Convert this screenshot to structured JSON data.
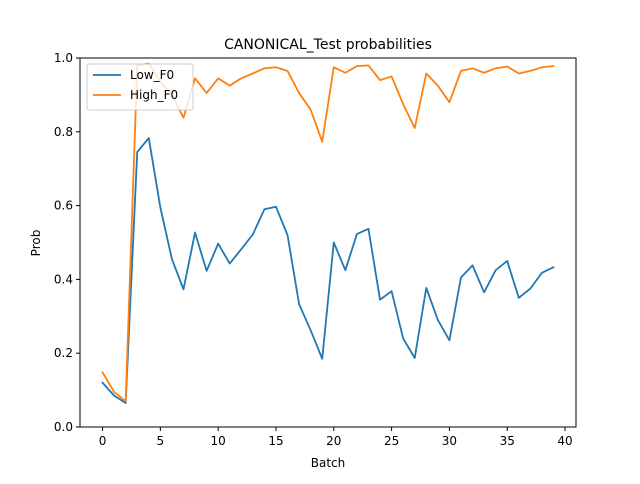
{
  "chart_data": {
    "type": "line",
    "title": "CANONICAL_Test probabilities",
    "xlabel": "Batch",
    "ylabel": "Prob",
    "xlim": [
      -1.95,
      40.95
    ],
    "ylim": [
      0.0,
      1.0
    ],
    "xticks": [
      0,
      5,
      10,
      15,
      20,
      25,
      30,
      35,
      40
    ],
    "yticks": [
      0.0,
      0.2,
      0.4,
      0.6,
      0.8,
      1.0
    ],
    "ytick_labels": [
      "0.0",
      "0.2",
      "0.4",
      "0.6",
      "0.8",
      "1.0"
    ],
    "grid": false,
    "legend_position": "upper-left",
    "x": [
      0,
      1,
      2,
      3,
      4,
      5,
      6,
      7,
      8,
      9,
      10,
      11,
      12,
      13,
      14,
      15,
      16,
      17,
      18,
      19,
      20,
      21,
      22,
      23,
      24,
      25,
      26,
      27,
      28,
      29,
      30,
      31,
      32,
      33,
      34,
      35,
      36,
      37,
      38,
      39
    ],
    "series": [
      {
        "name": "Low_F0",
        "color": "#1f77b4",
        "values": [
          0.12,
          0.085,
          0.065,
          0.745,
          0.783,
          0.595,
          0.455,
          0.373,
          0.527,
          0.423,
          0.497,
          0.443,
          0.482,
          0.522,
          0.59,
          0.597,
          0.52,
          0.333,
          0.262,
          0.185,
          0.5,
          0.425,
          0.523,
          0.537,
          0.345,
          0.368,
          0.24,
          0.187,
          0.377,
          0.29,
          0.235,
          0.405,
          0.438,
          0.365,
          0.425,
          0.45,
          0.35,
          0.375,
          0.418,
          0.433
        ]
      },
      {
        "name": "High_F0",
        "color": "#ff7f0e",
        "values": [
          0.148,
          0.095,
          0.07,
          0.98,
          0.985,
          0.935,
          0.9,
          0.838,
          0.945,
          0.905,
          0.945,
          0.925,
          0.945,
          0.958,
          0.972,
          0.975,
          0.965,
          0.905,
          0.86,
          0.773,
          0.975,
          0.96,
          0.978,
          0.98,
          0.94,
          0.95,
          0.875,
          0.81,
          0.958,
          0.925,
          0.88,
          0.965,
          0.972,
          0.96,
          0.972,
          0.977,
          0.958,
          0.965,
          0.975,
          0.978
        ]
      }
    ]
  }
}
